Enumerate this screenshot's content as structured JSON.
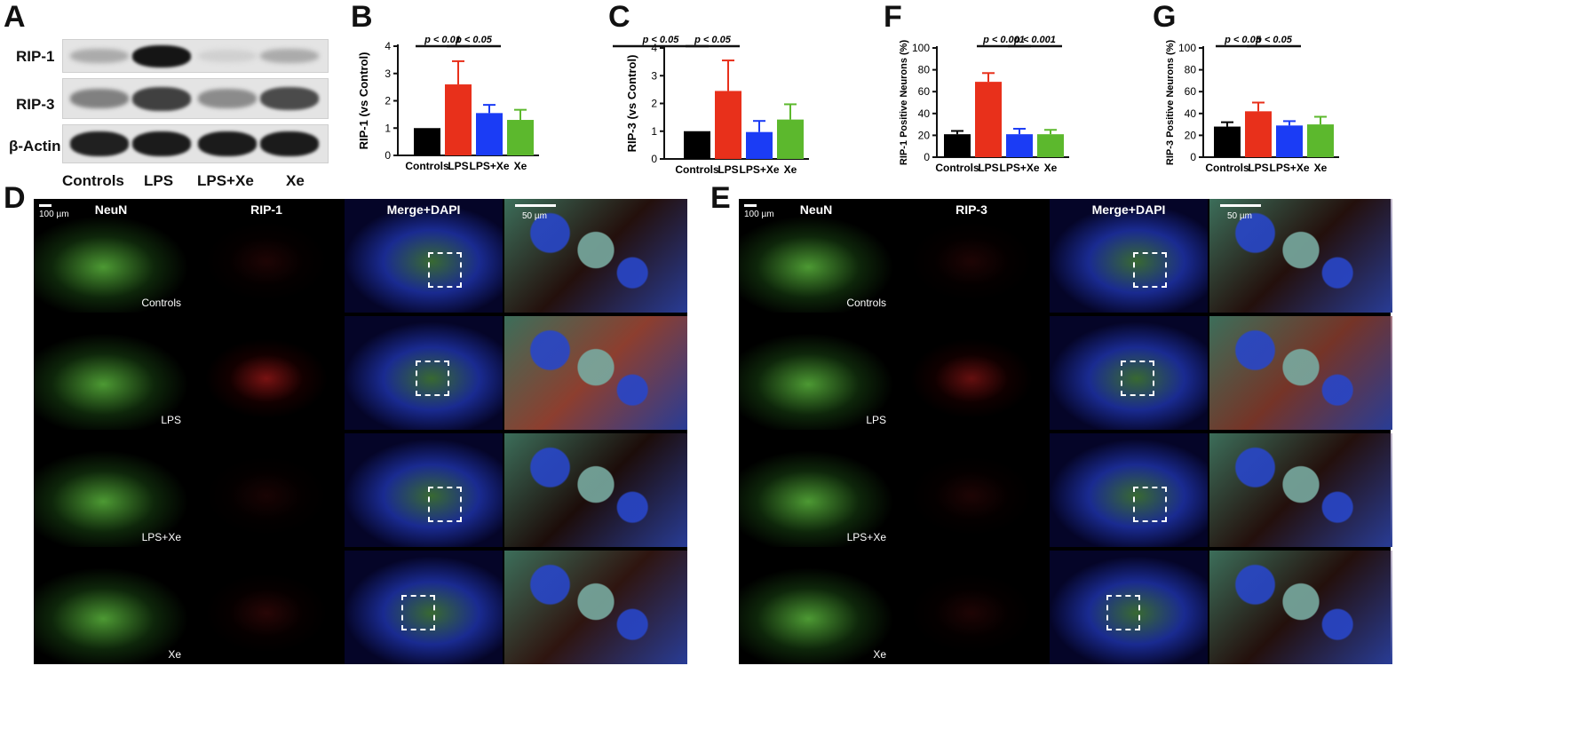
{
  "panels": {
    "A": "A",
    "B": "B",
    "C": "C",
    "D": "D",
    "E": "E",
    "F": "F",
    "G": "G"
  },
  "blot": {
    "rows": [
      "RIP-1",
      "RIP-3",
      "β-Actin"
    ],
    "lanes": [
      "Controls",
      "LPS",
      "LPS+Xe",
      "Xe"
    ],
    "intensity": [
      [
        0.25,
        0.95,
        0.08,
        0.25
      ],
      [
        0.45,
        0.75,
        0.4,
        0.7
      ],
      [
        0.9,
        0.92,
        0.92,
        0.92
      ]
    ]
  },
  "chart_data": [
    {
      "panel": "B",
      "type": "bar",
      "categories": [
        "Controls",
        "LPS",
        "LPS+Xe",
        "Xe"
      ],
      "values": [
        1.0,
        2.6,
        1.55,
        1.3
      ],
      "errors": [
        0,
        0.85,
        0.3,
        0.37
      ],
      "colors": [
        "#000000",
        "#e8301b",
        "#1b3cf5",
        "#5cb82d"
      ],
      "ylabel": "RIP-1 (vs Control)",
      "ylim": [
        0,
        4
      ],
      "yticks": [
        0,
        1,
        2,
        3,
        4
      ],
      "annotations": [
        {
          "text": "p < 0.01",
          "from": 0,
          "to": 1
        },
        {
          "text": "p < 0.05",
          "from": 1,
          "to": 2
        }
      ]
    },
    {
      "panel": "C",
      "type": "bar",
      "categories": [
        "Controls",
        "LPS",
        "LPS+Xe",
        "Xe"
      ],
      "values": [
        1.0,
        2.45,
        0.97,
        1.42
      ],
      "errors": [
        0,
        1.1,
        0.4,
        0.55
      ],
      "colors": [
        "#000000",
        "#e8301b",
        "#1b3cf5",
        "#5cb82d"
      ],
      "ylabel": "RIP-3 (vs Control)",
      "ylim": [
        0,
        4
      ],
      "yticks": [
        0,
        1,
        2,
        3,
        4
      ],
      "annotations": [
        {
          "text": "p < 0.05",
          "from": -1,
          "to": 0
        },
        {
          "text": "p < 0.05",
          "from": 0,
          "to": 1
        }
      ]
    },
    {
      "panel": "F",
      "type": "bar",
      "categories": [
        "Controls",
        "LPS",
        "LPS+Xe",
        "Xe"
      ],
      "values": [
        21,
        69,
        21,
        21
      ],
      "errors": [
        3,
        8,
        5,
        4
      ],
      "colors": [
        "#000000",
        "#e8301b",
        "#1b3cf5",
        "#5cb82d"
      ],
      "ylabel": "RIP-1 Positive Neurons (%)",
      "ylim": [
        0,
        100
      ],
      "yticks": [
        0,
        20,
        40,
        60,
        80,
        100
      ],
      "annotations": [
        {
          "text": "p < 0.001",
          "from": 1,
          "to": 2
        },
        {
          "text": "p < 0.001",
          "from": 2,
          "to": 3
        }
      ]
    },
    {
      "panel": "G",
      "type": "bar",
      "categories": [
        "Controls",
        "LPS",
        "LPS+Xe",
        "Xe"
      ],
      "values": [
        28,
        42,
        29,
        30
      ],
      "errors": [
        4,
        8,
        4,
        7
      ],
      "colors": [
        "#000000",
        "#e8301b",
        "#1b3cf5",
        "#5cb82d"
      ],
      "ylabel": "RIP-3 Positive Neurons (%)",
      "ylim": [
        0,
        100
      ],
      "yticks": [
        0,
        20,
        40,
        60,
        80,
        100
      ],
      "annotations": [
        {
          "text": "p < 0.05",
          "from": 0,
          "to": 1
        },
        {
          "text": "p < 0.05",
          "from": 1,
          "to": 2
        }
      ]
    }
  ],
  "micrographs": [
    {
      "panel": "D",
      "columns": [
        "NeuN",
        "RIP-1",
        "Merge+DAPI",
        ""
      ],
      "rows": [
        "Controls",
        "LPS",
        "LPS+Xe",
        "Xe"
      ],
      "scale_small": "100 µm",
      "scale_large": "50 µm",
      "red_intensity": [
        0.15,
        0.6,
        0.12,
        0.2
      ]
    },
    {
      "panel": "E",
      "columns": [
        "NeuN",
        "RIP-3",
        "Merge+DAPI",
        ""
      ],
      "rows": [
        "Controls",
        "LPS",
        "LPS+Xe",
        "Xe"
      ],
      "scale_small": "100 µm",
      "scale_large": "50 µm",
      "red_intensity": [
        0.15,
        0.5,
        0.15,
        0.15
      ]
    }
  ]
}
